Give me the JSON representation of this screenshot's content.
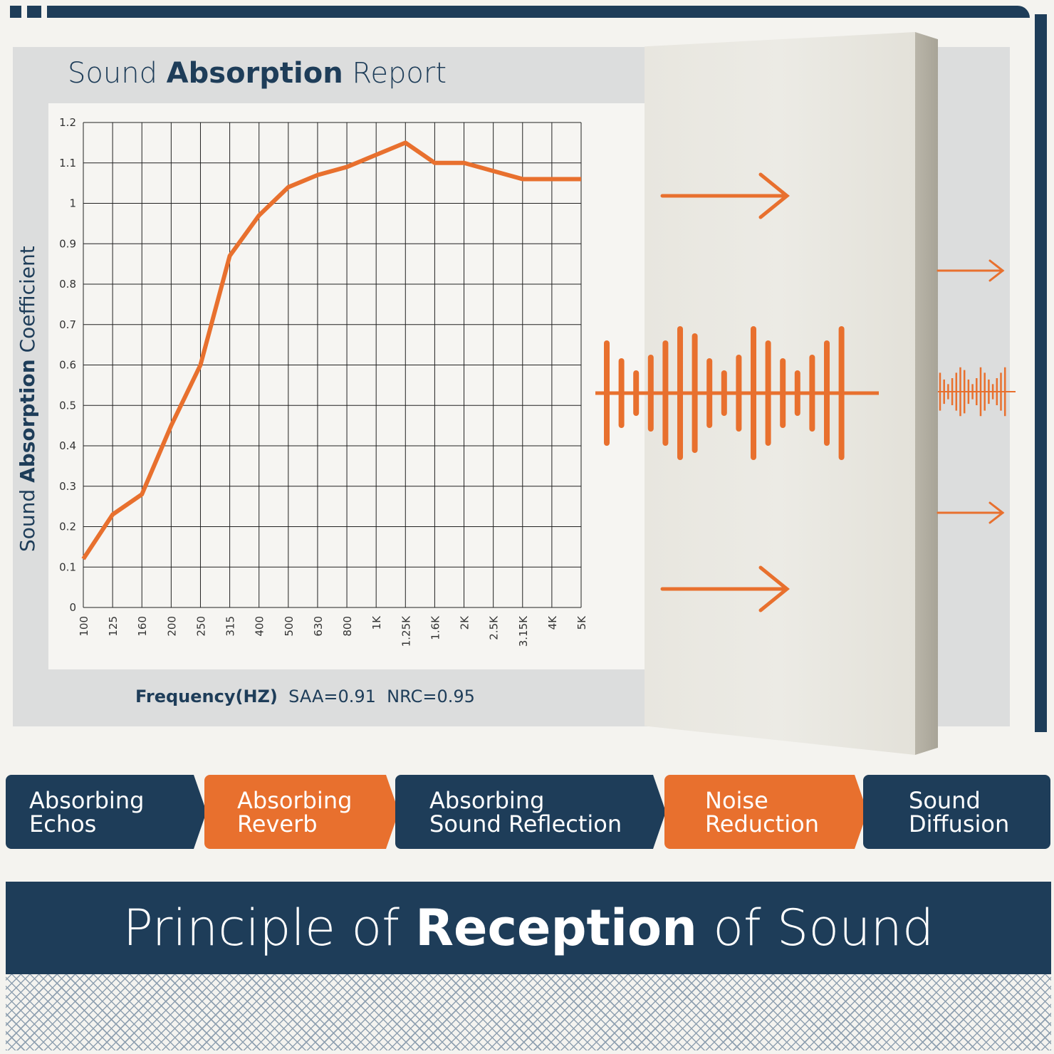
{
  "title": {
    "pre": "Sound ",
    "bold": "Absorption",
    "post": " Report"
  },
  "ylabel": {
    "pre": "Sound ",
    "bold": "Absorption",
    "post": " Coefficient"
  },
  "footer": {
    "xlabel": "Frequency(HZ)",
    "saa": "SAA=0.91",
    "nrc": "NRC=0.95"
  },
  "colors": {
    "navy": "#1e3d59",
    "orange": "#e8702e",
    "panel": "#dcdddd"
  },
  "features": [
    {
      "line1": "Absorbing",
      "line2": "Echos",
      "color": "navy"
    },
    {
      "line1": "Absorbing",
      "line2": "Reverb",
      "color": "orange"
    },
    {
      "line1": "Absorbing",
      "line2": "Sound Reflection",
      "color": "navy"
    },
    {
      "line1": "Noise",
      "line2": "Reduction",
      "color": "orange"
    },
    {
      "line1": "Sound",
      "line2": "Diffusion",
      "color": "navy"
    }
  ],
  "banner": {
    "pre": "Principle of ",
    "bold": "Reception",
    "post": " of Sound"
  },
  "chart_data": {
    "type": "line",
    "xlabel": "Frequency(HZ)",
    "ylabel": "Sound Absorption Coefficient",
    "categories": [
      "100",
      "125",
      "160",
      "200",
      "250",
      "315",
      "400",
      "500",
      "630",
      "800",
      "1K",
      "1.25K",
      "1.6K",
      "2K",
      "2.5K",
      "3.15K",
      "4K",
      "5K"
    ],
    "values": [
      0.12,
      0.23,
      0.28,
      0.45,
      0.6,
      0.87,
      0.97,
      1.04,
      1.07,
      1.09,
      1.12,
      1.15,
      1.1,
      1.1,
      1.08,
      1.06,
      1.06,
      1.06
    ],
    "yticks": [
      "0",
      "0.1",
      "0.2",
      "0.3",
      "0.4",
      "0.5",
      "0.6",
      "0.7",
      "0.8",
      "0.9",
      "1",
      "1.1",
      "1.2"
    ],
    "ylim": [
      0,
      1.2
    ],
    "grid": true,
    "line_color": "#e8702e"
  }
}
